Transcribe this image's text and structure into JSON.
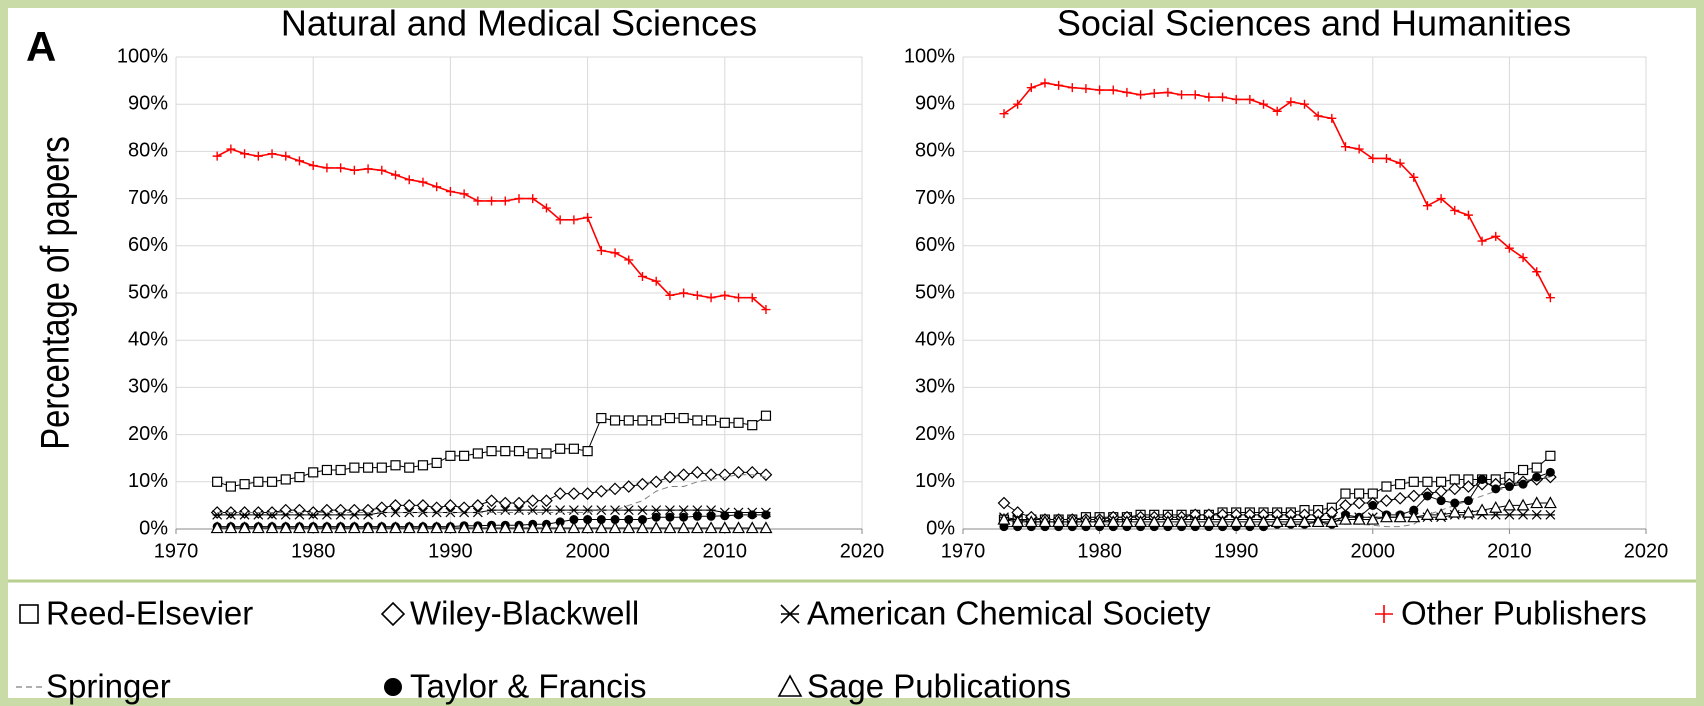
{
  "panel_label": "A",
  "y_label": "Percentage of papers",
  "legend": [
    {
      "name": "Reed-Elsevier",
      "color": "#000000",
      "marker": "square"
    },
    {
      "name": "Wiley-Blackwell",
      "color": "#000000",
      "marker": "diamond"
    },
    {
      "name": "American Chemical Society",
      "color": "#000000",
      "marker": "asterisk"
    },
    {
      "name": "Other Publishers",
      "color": "#ff0000",
      "marker": "plus"
    },
    {
      "name": "Springer",
      "color": "#808080",
      "marker": "dash"
    },
    {
      "name": "Taylor & Francis",
      "color": "#000000",
      "marker": "circle"
    },
    {
      "name": "Sage Publications",
      "color": "#000000",
      "marker": "triangle"
    }
  ],
  "chart_data": [
    {
      "type": "line",
      "title": "Natural and Medical Sciences",
      "grid": true,
      "x": [
        1973,
        1974,
        1975,
        1976,
        1977,
        1978,
        1979,
        1980,
        1981,
        1982,
        1983,
        1984,
        1985,
        1986,
        1987,
        1988,
        1989,
        1990,
        1991,
        1992,
        1993,
        1994,
        1995,
        1996,
        1997,
        1998,
        1999,
        2000,
        2001,
        2002,
        2003,
        2004,
        2005,
        2006,
        2007,
        2008,
        2009,
        2010,
        2011,
        2012,
        2013
      ],
      "xlim": [
        1970,
        2020
      ],
      "xticks": [
        1970,
        1980,
        1990,
        2000,
        2010,
        2020
      ],
      "ylim": [
        0,
        100
      ],
      "yticks": [
        {
          "value": 0,
          "label": "0%"
        },
        {
          "value": 10,
          "label": "10%"
        },
        {
          "value": 20,
          "label": "20%"
        },
        {
          "value": 30,
          "label": "30%"
        },
        {
          "value": 40,
          "label": "40%"
        },
        {
          "value": 50,
          "label": "50%"
        },
        {
          "value": 60,
          "label": "60%"
        },
        {
          "value": 70,
          "label": "70%"
        },
        {
          "value": 80,
          "label": "80%"
        },
        {
          "value": 90,
          "label": "90%"
        },
        {
          "value": 100,
          "label": "100%"
        }
      ],
      "series": [
        {
          "values": [
            10,
            9,
            9.5,
            10,
            10,
            10.5,
            11,
            12,
            12.5,
            12.5,
            13,
            13,
            13,
            13.5,
            13,
            13.5,
            14,
            15.5,
            15.5,
            16,
            16.5,
            16.5,
            16.5,
            16,
            16,
            17,
            17,
            16.5,
            23.5,
            23,
            23,
            23,
            23,
            23.5,
            23.5,
            23,
            23,
            22.5,
            22.5,
            22,
            24
          ]
        },
        {
          "values": [
            3.5,
            3.5,
            3.5,
            3.5,
            3.5,
            4,
            4,
            3.5,
            4,
            4,
            4,
            4,
            4.5,
            5,
            5,
            5,
            4.5,
            5,
            4.5,
            5,
            6,
            5.5,
            5.5,
            6,
            6,
            7.5,
            7.5,
            7.5,
            8,
            8.5,
            9,
            9.5,
            10,
            11,
            11.5,
            12,
            11.5,
            11.5,
            12,
            12,
            11.5
          ]
        },
        {
          "values": [
            3,
            3,
            3,
            3,
            3,
            3,
            3,
            3,
            3,
            3,
            3,
            3,
            3.5,
            3.5,
            3.5,
            3.5,
            3.5,
            3.5,
            3.5,
            3.5,
            4,
            4,
            4,
            4,
            4,
            4,
            4,
            4,
            4,
            4,
            4,
            4,
            4,
            4,
            4,
            4,
            4,
            3.5,
            3.5,
            3.5,
            3.5
          ]
        },
        {
          "values": [
            79,
            80.5,
            79.5,
            79,
            79.5,
            79,
            78,
            77,
            76.5,
            76.5,
            76,
            76.3,
            76,
            75,
            74,
            73.5,
            72.5,
            71.5,
            71,
            69.5,
            69.5,
            69.5,
            70,
            70,
            68,
            65.5,
            65.5,
            66,
            59,
            58.5,
            57,
            53.5,
            52.5,
            49.5,
            50,
            49.5,
            49,
            49.5,
            49,
            49,
            46.5
          ]
        },
        {
          "values": [
            3.5,
            3.5,
            3.5,
            3.5,
            3.5,
            3.5,
            3.5,
            3.5,
            3.5,
            3.5,
            3.5,
            3.5,
            3.5,
            3.5,
            3.5,
            3.5,
            3.5,
            3.5,
            3.5,
            3.5,
            3.5,
            3.5,
            3.5,
            3.5,
            3.5,
            3.5,
            3.5,
            3.5,
            4,
            4,
            5,
            6,
            8,
            9,
            9,
            10,
            10.5,
            11,
            11.5,
            11.5,
            11
          ]
        },
        {
          "values": [
            0.5,
            0.5,
            0.5,
            0.5,
            0.5,
            0.5,
            0.5,
            0.5,
            0.5,
            0.5,
            0.5,
            0.5,
            0.5,
            0.5,
            0.5,
            0.5,
            0.5,
            0.5,
            0.7,
            0.7,
            0.8,
            0.8,
            0.8,
            1,
            1,
            1.5,
            2,
            2,
            2,
            2,
            2,
            2,
            2.5,
            2.5,
            2.5,
            2.7,
            2.7,
            2.8,
            3,
            3,
            3
          ]
        },
        {
          "values": [
            0.2,
            0.2,
            0.2,
            0.2,
            0.2,
            0.2,
            0.2,
            0.2,
            0.2,
            0.2,
            0.2,
            0.2,
            0.2,
            0.2,
            0.2,
            0.2,
            0.2,
            0.2,
            0.2,
            0.2,
            0.2,
            0.2,
            0.2,
            0.2,
            0.2,
            0.2,
            0.2,
            0.2,
            0.2,
            0.2,
            0.2,
            0.2,
            0.2,
            0.2,
            0.2,
            0.2,
            0.2,
            0.2,
            0.2,
            0.2,
            0.2
          ]
        }
      ]
    },
    {
      "type": "line",
      "title": "Social Sciences and Humanities",
      "grid": true,
      "x": [
        1973,
        1974,
        1975,
        1976,
        1977,
        1978,
        1979,
        1980,
        1981,
        1982,
        1983,
        1984,
        1985,
        1986,
        1987,
        1988,
        1989,
        1990,
        1991,
        1992,
        1993,
        1994,
        1995,
        1996,
        1997,
        1998,
        1999,
        2000,
        2001,
        2002,
        2003,
        2004,
        2005,
        2006,
        2007,
        2008,
        2009,
        2010,
        2011,
        2012,
        2013
      ],
      "xlim": [
        1970,
        2020
      ],
      "xticks": [
        1970,
        1980,
        1990,
        2000,
        2010,
        2020
      ],
      "ylim": [
        0,
        100
      ],
      "yticks": [
        {
          "value": 0,
          "label": "0%"
        },
        {
          "value": 10,
          "label": "10%"
        },
        {
          "value": 20,
          "label": "20%"
        },
        {
          "value": 30,
          "label": "30%"
        },
        {
          "value": 40,
          "label": "40%"
        },
        {
          "value": 50,
          "label": "50%"
        },
        {
          "value": 60,
          "label": "60%"
        },
        {
          "value": 70,
          "label": "70%"
        },
        {
          "value": 80,
          "label": "80%"
        },
        {
          "value": 90,
          "label": "90%"
        },
        {
          "value": 100,
          "label": "100%"
        }
      ],
      "series": [
        {
          "values": [
            2,
            2,
            2,
            2,
            2,
            2,
            2.5,
            2.5,
            2.5,
            2.5,
            3,
            3,
            3,
            3,
            3,
            3,
            3.5,
            3.5,
            3.5,
            3.5,
            3.5,
            3.5,
            4,
            4,
            4.5,
            7.5,
            7.5,
            7.5,
            9,
            9.5,
            10,
            10,
            10,
            10.5,
            10.5,
            10.5,
            10.5,
            11,
            12.5,
            13,
            15.5
          ]
        },
        {
          "values": [
            5.5,
            3.5,
            2.5,
            2,
            2,
            2,
            2,
            2,
            2.5,
            2.5,
            2.5,
            2.5,
            2.5,
            2.5,
            3,
            3,
            3,
            3,
            3,
            3,
            3,
            3,
            3,
            3,
            3.5,
            5,
            5.5,
            5.5,
            6,
            6.5,
            7,
            7.5,
            8,
            8.5,
            9,
            9.5,
            9.5,
            9.5,
            10,
            10.5,
            11
          ]
        },
        {
          "values": [
            2.5,
            2,
            1.5,
            1.5,
            1.5,
            1.5,
            1.5,
            1.5,
            2,
            2,
            2,
            2,
            2,
            2,
            2,
            2,
            2,
            2,
            2,
            2,
            2,
            2,
            2,
            2,
            2,
            2.5,
            2.5,
            2.5,
            2.5,
            2.5,
            2.5,
            2.5,
            2.5,
            3,
            3,
            3,
            3,
            3,
            3,
            3,
            3
          ]
        },
        {
          "values": [
            88,
            90,
            93.5,
            94.5,
            94,
            93.5,
            93.3,
            93,
            93,
            92.5,
            92,
            92.3,
            92.5,
            92,
            92,
            91.5,
            91.5,
            91,
            91,
            90,
            88.5,
            90.5,
            90,
            87.5,
            87,
            81,
            80.5,
            78.5,
            78.5,
            77.5,
            74.5,
            68.5,
            70,
            67.5,
            66.5,
            61,
            62,
            59.5,
            57.5,
            54.5,
            49
          ]
        },
        {
          "values": [
            1,
            1,
            1,
            1,
            1,
            1,
            1,
            1,
            1,
            1,
            1,
            1,
            1,
            1,
            1,
            1,
            1,
            1,
            1,
            1,
            1,
            1,
            1,
            1,
            1,
            1,
            1,
            0.8,
            0.5,
            0.5,
            1,
            3,
            4,
            5,
            6,
            7,
            8,
            9,
            10,
            11,
            11
          ]
        },
        {
          "values": [
            0.5,
            0.5,
            0.5,
            0.5,
            0.5,
            0.5,
            0.5,
            0.5,
            0.5,
            0.5,
            0.5,
            0.5,
            0.5,
            0.5,
            0.5,
            0.5,
            0.5,
            0.5,
            0.5,
            0.5,
            1,
            1,
            1,
            1.5,
            1,
            3,
            2.5,
            5,
            3,
            3,
            4,
            7,
            6,
            5.5,
            6,
            10.5,
            8.5,
            9,
            9.5,
            11,
            12
          ]
        },
        {
          "values": [
            2,
            1.5,
            1.5,
            1.5,
            1.5,
            1.5,
            1.5,
            1.5,
            1.5,
            1.5,
            1.5,
            1.5,
            1.5,
            1.5,
            1.5,
            1.5,
            1.5,
            1.5,
            1.5,
            1.5,
            1.5,
            1.5,
            1.5,
            1.5,
            1.5,
            2,
            2,
            2,
            2.5,
            2.5,
            2.5,
            3,
            3,
            3.5,
            3.5,
            4,
            4.5,
            5,
            5,
            5.5,
            5.5
          ]
        }
      ]
    }
  ]
}
